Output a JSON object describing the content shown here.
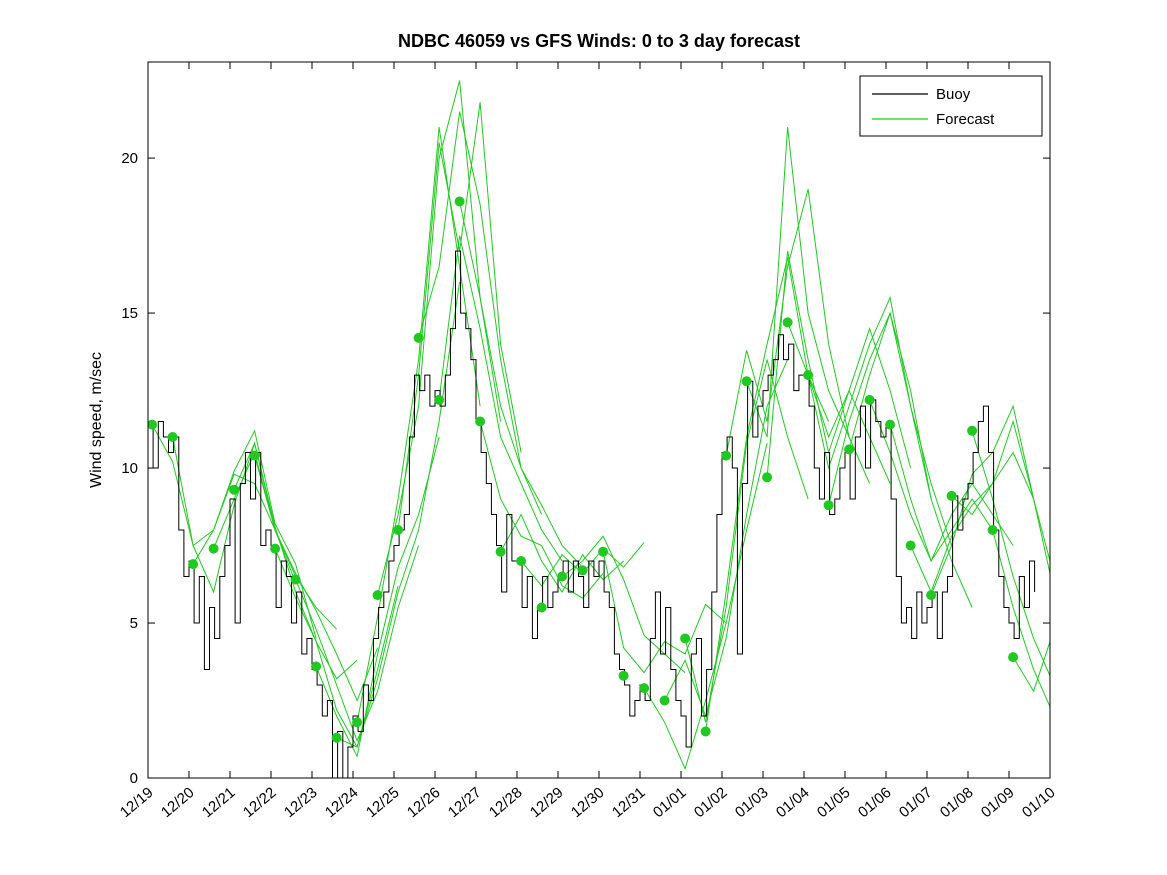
{
  "chart_data": {
    "type": "line",
    "title": "NDBC 46059 vs GFS Winds: 0 to 3 day forecast",
    "xlabel": "",
    "ylabel": "Wind speed, m/sec",
    "xlim": [
      0,
      22
    ],
    "ylim": [
      0,
      23.1
    ],
    "grid": false,
    "legend_position": "top-right-inside",
    "x_ticks": [
      "12/19",
      "12/20",
      "12/21",
      "12/22",
      "12/23",
      "12/24",
      "12/25",
      "12/26",
      "12/27",
      "12/28",
      "12/29",
      "12/30",
      "12/31",
      "01/01",
      "01/02",
      "01/03",
      "01/04",
      "01/05",
      "01/06",
      "01/07",
      "01/08",
      "01/09",
      "01/10"
    ],
    "y_ticks": [
      0,
      5,
      10,
      15,
      20
    ],
    "colors": {
      "buoy": "#000000",
      "forecast": "#22c822",
      "marker": "#22c822"
    },
    "legend": {
      "items": [
        {
          "label": "Buoy",
          "color": "#000000"
        },
        {
          "label": "Forecast",
          "color": "#22c822"
        }
      ]
    },
    "buoy": {
      "t0": 0,
      "dt": 0.125,
      "values": [
        11.5,
        10.0,
        11.5,
        11.0,
        10.5,
        11.0,
        8.0,
        6.5,
        7.0,
        5.0,
        6.5,
        3.5,
        5.5,
        4.5,
        6.5,
        7.5,
        9.0,
        5.0,
        9.5,
        10.5,
        9.0,
        10.5,
        7.5,
        8.0,
        7.5,
        5.5,
        7.0,
        6.5,
        5.0,
        6.0,
        4.0,
        4.5,
        3.5,
        3.0,
        2.0,
        2.5,
        0.0,
        1.5,
        0.0,
        1.0,
        2.0,
        1.5,
        3.0,
        2.5,
        4.5,
        5.5,
        6.0,
        7.0,
        7.5,
        8.0,
        8.5,
        11.0,
        13.0,
        12.5,
        13.0,
        12.0,
        12.5,
        12.0,
        13.0,
        14.5,
        17.0,
        15.0,
        14.5,
        13.5,
        11.5,
        10.5,
        9.5,
        8.5,
        7.5,
        6.0,
        8.5,
        7.0,
        7.0,
        5.5,
        6.5,
        4.5,
        5.5,
        6.5,
        5.5,
        6.0,
        6.5,
        7.0,
        6.0,
        7.0,
        6.5,
        5.5,
        7.0,
        6.5,
        7.0,
        6.0,
        5.5,
        4.0,
        3.5,
        3.0,
        2.0,
        2.5,
        3.0,
        2.5,
        4.5,
        6.0,
        4.0,
        5.5,
        3.5,
        2.5,
        2.0,
        1.0,
        4.0,
        4.5,
        2.0,
        3.5,
        6.0,
        8.5,
        10.5,
        11.0,
        10.0,
        4.0,
        9.5,
        12.8,
        11.0,
        12.0,
        12.5,
        13.0,
        13.5,
        14.3,
        13.5,
        14.0,
        12.5,
        13.0,
        13.0,
        12.0,
        10.0,
        9.0,
        10.5,
        8.5,
        9.0,
        10.0,
        10.5,
        9.0,
        11.0,
        12.0,
        10.0,
        12.2,
        11.5,
        11.0,
        11.4,
        9.0,
        6.5,
        5.0,
        5.5,
        4.5,
        6.0,
        5.0,
        5.5,
        6.0,
        4.5,
        6.0,
        6.5,
        9.1,
        8.0,
        9.0,
        9.5,
        10.5,
        11.5,
        12.0,
        10.5,
        8.0,
        6.5,
        5.5,
        5.0,
        4.5,
        6.5,
        5.5,
        7.0,
        6.0
      ]
    },
    "forecasts": [
      {
        "t0": 0.1,
        "dt": 0.5,
        "values": [
          11.4,
          10.2,
          7.5,
          8.0,
          9.8,
          9.5,
          8.0
        ]
      },
      {
        "t0": 0.6,
        "dt": 0.5,
        "values": [
          11.0,
          7.5,
          6.0,
          8.8,
          10.8,
          8.0,
          6.3
        ]
      },
      {
        "t0": 1.1,
        "dt": 0.5,
        "values": [
          6.9,
          8.0,
          9.9,
          11.2,
          8.2,
          6.9,
          4.5
        ]
      },
      {
        "t0": 1.6,
        "dt": 0.5,
        "values": [
          7.4,
          9.0,
          10.5,
          8.0,
          6.5,
          5.5,
          4.8
        ]
      },
      {
        "t0": 2.1,
        "dt": 0.5,
        "values": [
          9.3,
          10.8,
          8.1,
          6.0,
          4.4,
          3.2,
          3.8
        ]
      },
      {
        "t0": 2.6,
        "dt": 0.5,
        "values": [
          10.4,
          8.0,
          6.6,
          5.4,
          4.0,
          2.5,
          4.2
        ]
      },
      {
        "t0": 3.1,
        "dt": 0.5,
        "values": [
          7.4,
          5.8,
          4.4,
          2.2,
          1.0,
          3.5,
          6.2
        ]
      },
      {
        "t0": 3.6,
        "dt": 0.5,
        "values": [
          6.4,
          4.8,
          3.0,
          1.2,
          2.8,
          5.5,
          7.5
        ]
      },
      {
        "t0": 4.1,
        "dt": 0.5,
        "values": [
          3.6,
          2.0,
          0.7,
          4.0,
          6.8,
          8.5,
          11.0
        ]
      },
      {
        "t0": 4.6,
        "dt": 0.5,
        "values": [
          1.3,
          1.0,
          3.2,
          6.0,
          8.0,
          11.5,
          16.0
        ]
      },
      {
        "t0": 5.1,
        "dt": 0.5,
        "values": [
          1.8,
          5.2,
          9.0,
          13.5,
          21.0,
          16.5,
          12.0
        ]
      },
      {
        "t0": 5.6,
        "dt": 0.5,
        "values": [
          5.9,
          8.5,
          12.0,
          20.0,
          22.5,
          15.5,
          11.5
        ]
      },
      {
        "t0": 6.1,
        "dt": 0.5,
        "values": [
          8.0,
          13.0,
          20.5,
          17.0,
          21.8,
          14.0,
          10.5
        ]
      },
      {
        "t0": 6.6,
        "dt": 0.5,
        "values": [
          14.2,
          16.5,
          21.5,
          18.5,
          13.5,
          10.0,
          8.5
        ]
      },
      {
        "t0": 7.1,
        "dt": 0.5,
        "values": [
          12.2,
          17.5,
          14.5,
          11.0,
          9.5,
          8.0,
          7.0
        ]
      },
      {
        "t0": 7.6,
        "dt": 0.5,
        "values": [
          18.6,
          15.5,
          12.0,
          10.0,
          8.8,
          7.5,
          6.8
        ]
      },
      {
        "t0": 8.1,
        "dt": 0.5,
        "values": [
          11.5,
          9.0,
          7.8,
          7.5,
          6.2,
          5.8,
          6.6
        ]
      },
      {
        "t0": 8.6,
        "dt": 0.5,
        "values": [
          7.3,
          8.5,
          7.0,
          6.0,
          7.2,
          6.4,
          7.0
        ]
      },
      {
        "t0": 9.1,
        "dt": 0.5,
        "values": [
          7.0,
          6.2,
          7.2,
          6.6,
          7.4,
          6.8,
          7.6
        ]
      },
      {
        "t0": 10.1,
        "dt": 0.5,
        "values": [
          6.5,
          7.0,
          7.8,
          6.4,
          4.6,
          4.0,
          3.4
        ]
      },
      {
        "t0": 11.1,
        "dt": 0.5,
        "values": [
          7.3,
          4.2,
          3.4,
          4.4,
          4.0,
          5.6,
          5.0
        ]
      },
      {
        "t0": 12.1,
        "dt": 0.5,
        "values": [
          2.9,
          1.8,
          0.3,
          2.5,
          5.0,
          8.0,
          10.8
        ]
      },
      {
        "t0": 12.6,
        "dt": 0.5,
        "values": [
          2.5,
          3.8,
          2.0,
          4.5,
          8.5,
          12.0,
          13.5
        ]
      },
      {
        "t0": 13.1,
        "dt": 0.5,
        "values": [
          4.5,
          1.8,
          5.5,
          10.8,
          13.5,
          11.0,
          9.0
        ]
      },
      {
        "t0": 13.6,
        "dt": 0.5,
        "values": [
          1.5,
          6.0,
          11.0,
          14.0,
          16.8,
          13.0,
          11.5
        ]
      },
      {
        "t0": 14.1,
        "dt": 0.5,
        "values": [
          10.4,
          13.8,
          11.5,
          16.5,
          19.0,
          14.0,
          11.0
        ]
      },
      {
        "t0": 14.6,
        "dt": 0.5,
        "values": [
          12.8,
          11.0,
          21.0,
          15.0,
          12.5,
          11.0,
          9.5
        ]
      },
      {
        "t0": 15.1,
        "dt": 0.5,
        "values": [
          9.7,
          17.0,
          13.5,
          10.5,
          12.5,
          11.0,
          9.5
        ]
      },
      {
        "t0": 15.6,
        "dt": 0.5,
        "values": [
          14.7,
          13.0,
          11.0,
          12.5,
          14.5,
          12.5,
          10.0
        ]
      },
      {
        "t0": 16.1,
        "dt": 0.5,
        "values": [
          13.0,
          10.0,
          12.0,
          14.0,
          15.5,
          12.0,
          9.0
        ]
      },
      {
        "t0": 16.6,
        "dt": 0.5,
        "values": [
          8.8,
          11.5,
          13.5,
          15.0,
          12.0,
          9.5,
          7.5
        ]
      },
      {
        "t0": 17.1,
        "dt": 0.5,
        "values": [
          10.6,
          13.0,
          15.0,
          12.5,
          9.0,
          7.0,
          5.5
        ]
      },
      {
        "t0": 17.6,
        "dt": 0.5,
        "values": [
          12.2,
          10.5,
          8.5,
          7.0,
          8.0,
          9.0,
          8.0
        ]
      },
      {
        "t0": 18.1,
        "dt": 0.5,
        "values": [
          11.4,
          9.0,
          7.0,
          8.5,
          9.5,
          8.5,
          7.5
        ]
      },
      {
        "t0": 18.6,
        "dt": 0.5,
        "values": [
          7.5,
          6.0,
          7.8,
          8.8,
          9.5,
          10.5,
          9.0
        ]
      },
      {
        "t0": 19.1,
        "dt": 0.5,
        "values": [
          5.9,
          7.5,
          9.8,
          10.5,
          12.0,
          9.0,
          6.5
        ]
      },
      {
        "t0": 19.6,
        "dt": 0.5,
        "values": [
          9.1,
          8.5,
          9.5,
          11.5,
          9.0,
          6.0,
          4.0
        ]
      },
      {
        "t0": 20.1,
        "dt": 0.5,
        "values": [
          11.2,
          9.0,
          6.5,
          4.5,
          3.0,
          5.5,
          8.0
        ]
      },
      {
        "t0": 20.6,
        "dt": 0.5,
        "values": [
          8.0,
          5.5,
          3.5,
          2.0,
          4.5,
          7.5,
          10.0
        ]
      },
      {
        "t0": 21.1,
        "dt": 0.5,
        "values": [
          3.9,
          2.8,
          4.8,
          7.2,
          9.5,
          10.0,
          8.0
        ]
      }
    ],
    "markers": [
      [
        0.1,
        11.4
      ],
      [
        0.6,
        11.0
      ],
      [
        1.1,
        6.9
      ],
      [
        1.6,
        7.4
      ],
      [
        2.1,
        9.3
      ],
      [
        2.6,
        10.4
      ],
      [
        3.1,
        7.4
      ],
      [
        3.6,
        6.4
      ],
      [
        4.1,
        3.6
      ],
      [
        4.6,
        1.3
      ],
      [
        5.1,
        1.8
      ],
      [
        5.6,
        5.9
      ],
      [
        6.1,
        8.0
      ],
      [
        6.6,
        14.2
      ],
      [
        7.1,
        12.2
      ],
      [
        7.6,
        18.6
      ],
      [
        8.1,
        11.5
      ],
      [
        8.6,
        7.3
      ],
      [
        9.1,
        7.0
      ],
      [
        9.6,
        5.5
      ],
      [
        10.1,
        6.5
      ],
      [
        10.6,
        6.7
      ],
      [
        11.1,
        7.3
      ],
      [
        11.6,
        3.3
      ],
      [
        12.1,
        2.9
      ],
      [
        12.6,
        2.5
      ],
      [
        13.1,
        4.5
      ],
      [
        13.6,
        1.5
      ],
      [
        14.1,
        10.4
      ],
      [
        14.6,
        12.8
      ],
      [
        15.1,
        9.7
      ],
      [
        15.6,
        14.7
      ],
      [
        16.1,
        13.0
      ],
      [
        16.6,
        8.8
      ],
      [
        17.1,
        10.6
      ],
      [
        17.6,
        12.2
      ],
      [
        18.1,
        11.4
      ],
      [
        18.6,
        7.5
      ],
      [
        19.1,
        5.9
      ],
      [
        19.6,
        9.1
      ],
      [
        20.1,
        11.2
      ],
      [
        20.6,
        8.0
      ],
      [
        21.1,
        3.9
      ]
    ]
  }
}
